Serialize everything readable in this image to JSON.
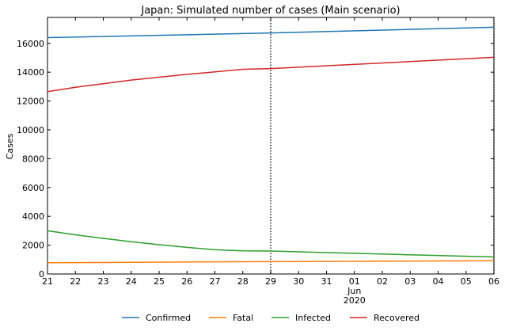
{
  "chart_data": {
    "type": "line",
    "title": "Japan: Simulated number of cases (Main scenario)",
    "xlabel": "",
    "ylabel": "Cases",
    "x_ticks": [
      "21",
      "22",
      "23",
      "24",
      "25",
      "26",
      "27",
      "28",
      "29",
      "30",
      "31",
      "01",
      "02",
      "03",
      "04",
      "05",
      "06"
    ],
    "x_secondary_label": [
      "Jun",
      "2020"
    ],
    "x_range": [
      "2020-05-21",
      "2020-06-06"
    ],
    "ylim": [
      0,
      17800
    ],
    "y_ticks": [
      0,
      2000,
      4000,
      6000,
      8000,
      10000,
      12000,
      14000,
      16000
    ],
    "vlines": [
      "2020-05-29",
      "2020-06-06"
    ],
    "series": [
      {
        "name": "Confirmed",
        "color": "#1f77b4",
        "points": [
          [
            "2020-05-21",
            16400
          ],
          [
            "2020-05-28",
            16680
          ],
          [
            "2020-05-29",
            16720
          ],
          [
            "2020-06-06",
            17120
          ]
        ]
      },
      {
        "name": "Fatal",
        "color": "#ff7f0e",
        "points": [
          [
            "2020-05-21",
            780
          ],
          [
            "2020-05-28",
            850
          ],
          [
            "2020-05-29",
            860
          ],
          [
            "2020-06-06",
            920
          ]
        ]
      },
      {
        "name": "Infected",
        "color": "#2ca02c",
        "points": [
          [
            "2020-05-21",
            3000
          ],
          [
            "2020-05-22",
            2720
          ],
          [
            "2020-05-23",
            2470
          ],
          [
            "2020-05-24",
            2240
          ],
          [
            "2020-05-25",
            2030
          ],
          [
            "2020-05-26",
            1850
          ],
          [
            "2020-05-27",
            1680
          ],
          [
            "2020-05-28",
            1610
          ],
          [
            "2020-05-29",
            1590
          ],
          [
            "2020-06-06",
            1180
          ]
        ]
      },
      {
        "name": "Recovered",
        "color": "#d62728",
        "points": [
          [
            "2020-05-21",
            12650
          ],
          [
            "2020-05-22",
            12950
          ],
          [
            "2020-05-23",
            13200
          ],
          [
            "2020-05-24",
            13450
          ],
          [
            "2020-05-25",
            13650
          ],
          [
            "2020-05-26",
            13850
          ],
          [
            "2020-05-27",
            14020
          ],
          [
            "2020-05-28",
            14200
          ],
          [
            "2020-05-29",
            14250
          ],
          [
            "2020-06-06",
            15030
          ]
        ]
      }
    ],
    "legend": {
      "position": "bottom-center"
    },
    "grid": false
  }
}
